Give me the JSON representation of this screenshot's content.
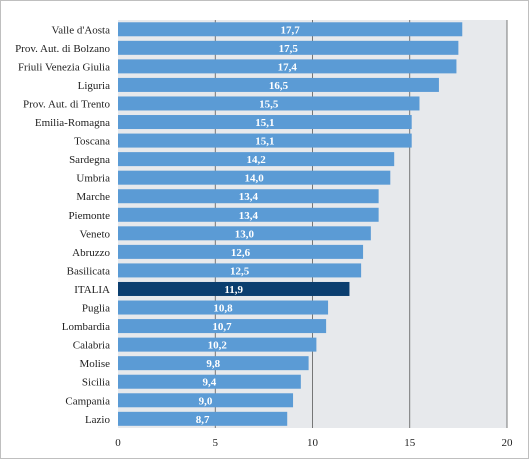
{
  "chart_data": {
    "type": "bar",
    "orientation": "horizontal",
    "categories": [
      "Valle d'Aosta",
      "Prov. Aut. di Bolzano",
      "Friuli Venezia Giulia",
      "Liguria",
      "Prov. Aut. di Trento",
      "Emilia-Romagna",
      "Toscana",
      "Sardegna",
      "Umbria",
      "Marche",
      "Piemonte",
      "Veneto",
      "Abruzzo",
      "Basilicata",
      "ITALIA",
      "Puglia",
      "Lombardia",
      "Calabria",
      "Molise",
      "Sicilia",
      "Campania",
      "Lazio"
    ],
    "values": [
      17.7,
      17.5,
      17.4,
      16.5,
      15.5,
      15.1,
      15.1,
      14.2,
      14.0,
      13.4,
      13.4,
      13.0,
      12.6,
      12.5,
      11.9,
      10.8,
      10.7,
      10.2,
      9.8,
      9.4,
      9.0,
      8.7
    ],
    "value_labels": [
      "17,7",
      "17,5",
      "17,4",
      "16,5",
      "15,5",
      "15,1",
      "15,1",
      "14,2",
      "14,0",
      "13,4",
      "13,4",
      "13,0",
      "12,6",
      "12,5",
      "11,9",
      "10,8",
      "10,7",
      "10,2",
      "9,8",
      "9,4",
      "9,0",
      "8,7"
    ],
    "highlight_category": "ITALIA",
    "xlim": [
      0,
      20
    ],
    "xticks": [
      0,
      5,
      10,
      15,
      20
    ],
    "xtick_labels": [
      "0",
      "5",
      "10",
      "15",
      "20"
    ],
    "grid": true,
    "colors": {
      "bar": "#5b9bd5",
      "highlight": "#0b3e6f",
      "plot_bg": "#e7e9ec",
      "grid": "#5a5a5a"
    }
  }
}
